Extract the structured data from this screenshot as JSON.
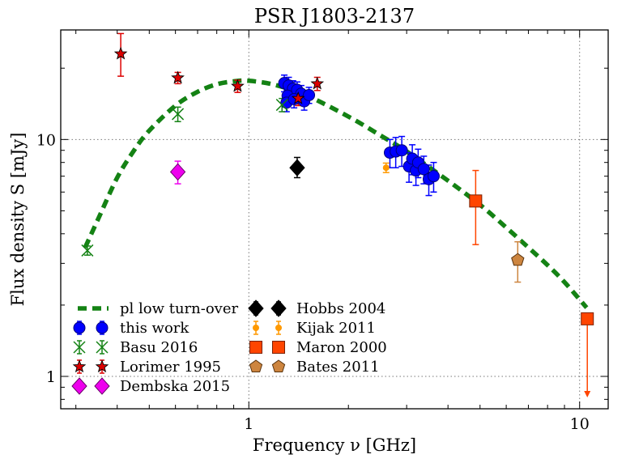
{
  "chart_data": {
    "type": "scatter",
    "title": "PSR J1803-2137",
    "xlabel": "Frequency ν [GHz]",
    "ylabel": "Flux density S [mJy]",
    "xscale": "log",
    "yscale": "log",
    "xlim": [
      0.27,
      12.2
    ],
    "ylim": [
      0.73,
      29
    ],
    "x_ticks": [
      {
        "value": 1,
        "label": "1"
      },
      {
        "value": 10,
        "label": "10"
      }
    ],
    "y_ticks": [
      {
        "value": 1,
        "label": "1"
      },
      {
        "value": 10,
        "label": "10"
      }
    ],
    "grid": "dotted at major ticks",
    "legend_position": "lower-left",
    "model": {
      "name": "pl low turn-over",
      "color": "#148214",
      "x": [
        0.32,
        0.35,
        0.4,
        0.45,
        0.5,
        0.6,
        0.7,
        0.8,
        0.9,
        1.0,
        1.2,
        1.5,
        2.0,
        2.5,
        3.0,
        4.0,
        5.0,
        6.0,
        7.0,
        8.0,
        9.0,
        10.5
      ],
      "y": [
        3.5,
        4.6,
        6.9,
        9.0,
        10.9,
        13.9,
        15.9,
        17.1,
        17.6,
        17.7,
        17.0,
        15.3,
        12.5,
        10.4,
        8.9,
        6.7,
        5.3,
        4.25,
        3.5,
        2.95,
        2.5,
        1.95
      ]
    },
    "series": [
      {
        "name": "this work",
        "marker": "circle",
        "color": "#0000ff",
        "edge": "#00007a",
        "points": [
          {
            "x": 1.28,
            "y": 17.3,
            "yerr": [
              1.4,
              1.4
            ]
          },
          {
            "x": 1.32,
            "y": 16.9,
            "yerr": [
              1.4,
              1.4
            ]
          },
          {
            "x": 1.36,
            "y": 16.4,
            "yerr": [
              1.3,
              1.3
            ]
          },
          {
            "x": 1.31,
            "y": 15.3,
            "yerr": [
              1.3,
              1.3
            ]
          },
          {
            "x": 1.4,
            "y": 16.2,
            "yerr": [
              1.3,
              1.3
            ]
          },
          {
            "x": 1.44,
            "y": 15.6,
            "yerr": [
              1.3,
              1.3
            ]
          },
          {
            "x": 1.3,
            "y": 14.3,
            "yerr": [
              1.2,
              1.2
            ]
          },
          {
            "x": 1.37,
            "y": 14.8,
            "yerr": [
              1.2,
              1.2
            ]
          },
          {
            "x": 1.47,
            "y": 14.5,
            "yerr": [
              1.2,
              1.2
            ]
          },
          {
            "x": 1.52,
            "y": 15.4,
            "yerr": [
              1.2,
              1.2
            ]
          },
          {
            "x": 2.67,
            "y": 8.8,
            "yerr": [
              1.2,
              1.2
            ]
          },
          {
            "x": 2.78,
            "y": 8.9,
            "yerr": [
              1.3,
              1.3
            ]
          },
          {
            "x": 2.9,
            "y": 9.0,
            "yerr": [
              1.3,
              1.3
            ]
          },
          {
            "x": 3.05,
            "y": 7.7,
            "yerr": [
              1.1,
              1.1
            ]
          },
          {
            "x": 3.12,
            "y": 8.3,
            "yerr": [
              1.2,
              1.2
            ]
          },
          {
            "x": 3.2,
            "y": 7.4,
            "yerr": [
              1.0,
              1.0
            ]
          },
          {
            "x": 3.25,
            "y": 8.0,
            "yerr": [
              1.1,
              1.1
            ]
          },
          {
            "x": 3.38,
            "y": 7.5,
            "yerr": [
              1.0,
              1.0
            ]
          },
          {
            "x": 3.5,
            "y": 6.8,
            "yerr": [
              1.0,
              1.0
            ]
          },
          {
            "x": 3.62,
            "y": 7.0,
            "yerr": [
              1.0,
              1.0
            ]
          }
        ]
      },
      {
        "name": "Basu 2016",
        "marker": "x",
        "color": "#148214",
        "points": [
          {
            "x": 0.325,
            "y": 3.4,
            "yerr": [
              0.15,
              0.15
            ]
          },
          {
            "x": 0.61,
            "y": 12.8,
            "yerr": [
              0.9,
              0.9
            ]
          },
          {
            "x": 1.26,
            "y": 14.0,
            "yerr": [
              0.9,
              0.9
            ]
          }
        ]
      },
      {
        "name": "Lorimer 1995",
        "marker": "star",
        "color": "#dd0000",
        "edge": "#000000",
        "points": [
          {
            "x": 0.41,
            "y": 23.0,
            "yerr": [
              4.5,
              5.0
            ]
          },
          {
            "x": 0.61,
            "y": 18.2,
            "yerr": [
              1.0,
              1.0
            ]
          },
          {
            "x": 0.925,
            "y": 16.8,
            "yerr": [
              1.0,
              1.0
            ]
          },
          {
            "x": 1.41,
            "y": 14.9,
            "yerr": [
              1.0,
              1.0
            ]
          },
          {
            "x": 1.61,
            "y": 17.2,
            "yerr": [
              1.1,
              1.1
            ]
          }
        ]
      },
      {
        "name": "Dembska 2015",
        "marker": "diamond",
        "color": "#ee00ee",
        "edge": "#6b006b",
        "points": [
          {
            "x": 0.61,
            "y": 7.3,
            "yerr": [
              0.8,
              0.8
            ]
          }
        ]
      },
      {
        "name": "Hobbs 2004",
        "marker": "diamond",
        "color": "#000000",
        "edge": "#000000",
        "points": [
          {
            "x": 1.4,
            "y": 7.6,
            "yerr": [
              0.7,
              0.8
            ]
          }
        ]
      },
      {
        "name": "Kijak 2011",
        "marker": "small-circle",
        "color": "#ff9900",
        "points": [
          {
            "x": 2.6,
            "y": 7.6,
            "yerr": [
              0.35,
              0.35
            ]
          }
        ]
      },
      {
        "name": "Maron 2000",
        "marker": "square",
        "color": "#ff4500",
        "edge": "#7a2000",
        "points": [
          {
            "x": 4.85,
            "y": 5.5,
            "yerr": [
              1.9,
              1.9
            ]
          },
          {
            "x": 10.55,
            "y": 1.75,
            "upper_limit": true
          }
        ]
      },
      {
        "name": "Bates 2011",
        "marker": "pentagon",
        "color": "#cd853f",
        "edge": "#5a3510",
        "points": [
          {
            "x": 6.5,
            "y": 3.1,
            "yerr": [
              0.6,
              0.6
            ]
          }
        ]
      }
    ]
  }
}
